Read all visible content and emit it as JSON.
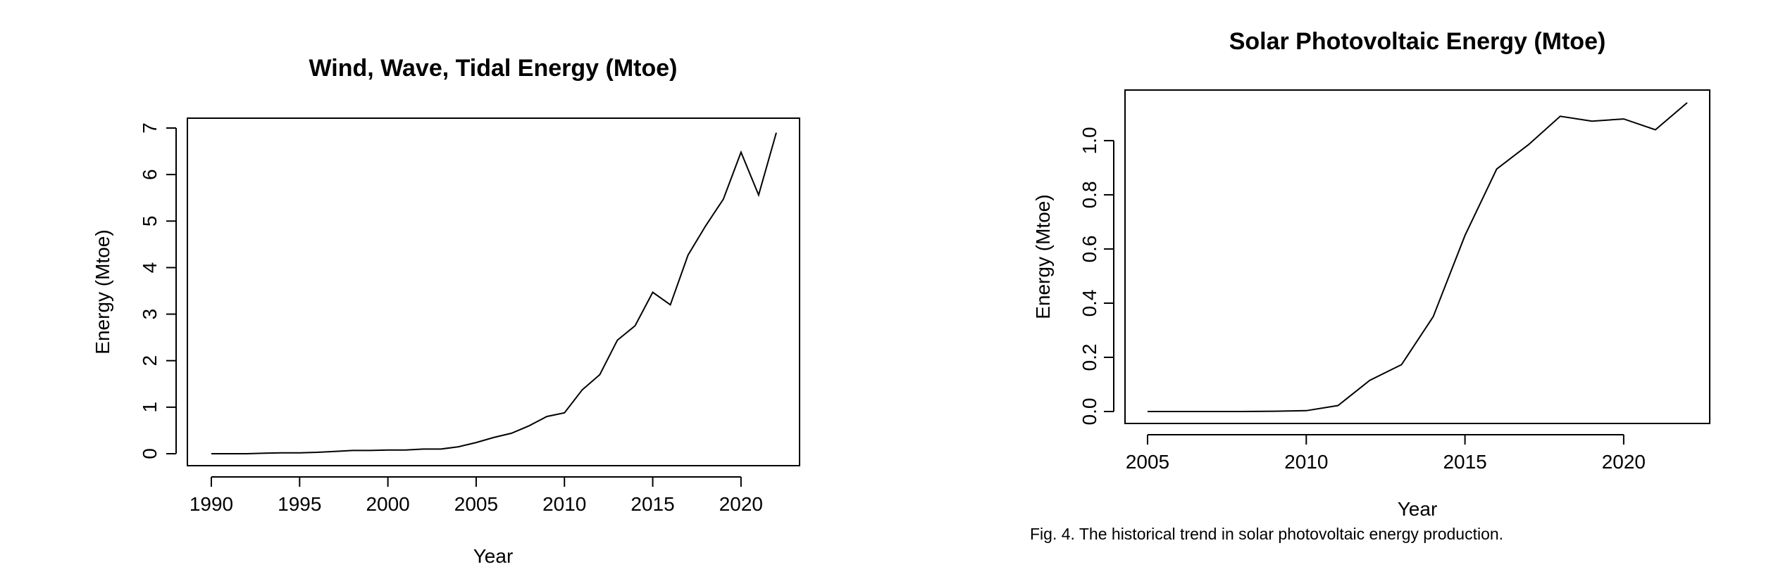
{
  "chart_data": [
    {
      "type": "line",
      "title": "Wind, Wave, Tidal Energy (Mtoe)",
      "xlabel": "Year",
      "ylabel": "Energy (Mtoe)",
      "xlim": [
        1990,
        2022
      ],
      "ylim": [
        0,
        7
      ],
      "xticks": [
        1990,
        1995,
        2000,
        2005,
        2010,
        2015,
        2020
      ],
      "yticks": [
        0,
        1,
        2,
        3,
        4,
        5,
        6,
        7
      ],
      "x": [
        1990,
        1991,
        1992,
        1993,
        1994,
        1995,
        1996,
        1997,
        1998,
        1999,
        2000,
        2001,
        2002,
        2003,
        2004,
        2005,
        2006,
        2007,
        2008,
        2009,
        2010,
        2011,
        2012,
        2013,
        2014,
        2015,
        2016,
        2017,
        2018,
        2019,
        2020,
        2021,
        2022
      ],
      "y": [
        0.0,
        0.0,
        0.0,
        0.01,
        0.02,
        0.02,
        0.03,
        0.05,
        0.07,
        0.07,
        0.08,
        0.08,
        0.1,
        0.1,
        0.15,
        0.24,
        0.35,
        0.44,
        0.6,
        0.8,
        0.88,
        1.37,
        1.7,
        2.44,
        2.75,
        3.47,
        3.2,
        4.27,
        4.9,
        5.47,
        6.48,
        5.56,
        6.9
      ]
    },
    {
      "type": "line",
      "title": "Solar Photovoltaic Energy (Mtoe)",
      "xlabel": "Year",
      "ylabel": "Energy (Mtoe)",
      "xlim": [
        2005,
        2022
      ],
      "ylim": [
        0,
        1.14
      ],
      "xticks": [
        2005,
        2010,
        2015,
        2020
      ],
      "yticks": [
        "0.0",
        "0.2",
        "0.4",
        "0.6",
        "0.8",
        "1.0"
      ],
      "x": [
        2005,
        2006,
        2007,
        2008,
        2009,
        2010,
        2011,
        2012,
        2013,
        2014,
        2015,
        2016,
        2017,
        2018,
        2019,
        2020,
        2021,
        2022
      ],
      "y": [
        0.0,
        0.0,
        0.0,
        0.0,
        0.001,
        0.003,
        0.022,
        0.115,
        0.173,
        0.35,
        0.65,
        0.895,
        0.985,
        1.09,
        1.072,
        1.08,
        1.04,
        1.14
      ]
    }
  ],
  "caption": "Fig. 4. The historical trend in solar photovoltaic energy production."
}
